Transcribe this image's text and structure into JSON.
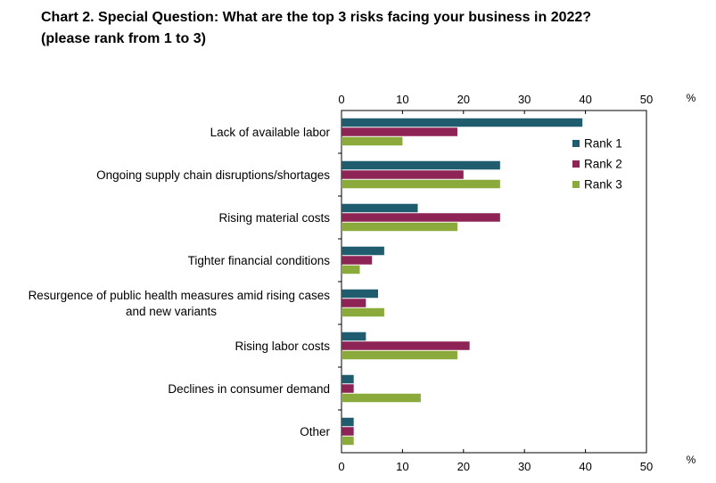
{
  "title_line1": "Chart 2. Special Question: What are the top 3 risks facing your business in 2022?",
  "title_line2": "(please rank from 1 to 3)",
  "chart_data": {
    "type": "bar",
    "orientation": "horizontal",
    "unit": "%",
    "xlim": [
      0,
      50
    ],
    "xticks": [
      0,
      10,
      20,
      30,
      40,
      50
    ],
    "grid": false,
    "legend_position": "top-right",
    "categories": [
      [
        "Lack of available labor"
      ],
      [
        "Ongoing supply chain disruptions/shortages"
      ],
      [
        "Rising material costs"
      ],
      [
        "Tighter financial conditions"
      ],
      [
        "Resurgence of public health measures amid rising cases",
        "and new variants"
      ],
      [
        "Rising labor costs"
      ],
      [
        "Declines in consumer demand"
      ],
      [
        "Other"
      ]
    ],
    "series": [
      {
        "name": "Rank 1",
        "color": "#1f5c6e",
        "values": [
          39.5,
          26,
          12.5,
          7,
          6,
          4,
          2,
          2
        ]
      },
      {
        "name": "Rank 2",
        "color": "#8e2356",
        "values": [
          19,
          20,
          26,
          5,
          4,
          21,
          2,
          2
        ]
      },
      {
        "name": "Rank 3",
        "color": "#8aab3b",
        "values": [
          10,
          26,
          19,
          3,
          7,
          19,
          13,
          2
        ]
      }
    ]
  }
}
